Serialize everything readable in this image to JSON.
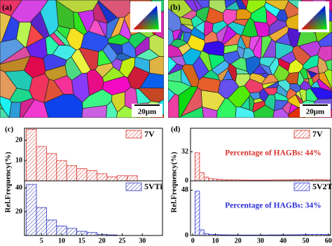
{
  "maps": [
    {
      "label": "(a)",
      "scale_bar": "20μm"
    },
    {
      "label": "(b)",
      "scale_bar": "20μm"
    }
  ],
  "chart_data": [
    {
      "type": "histogram",
      "panel_label": "(c)",
      "ylabel": "Rel.Frequency(%)",
      "bins": [
        1.25,
        3.75,
        6.25,
        8.75,
        11.25,
        13.75,
        16.25,
        18.75,
        21.25,
        23.75,
        26.25,
        28.75
      ],
      "series": [
        {
          "name": "7V",
          "color": "#d9312b",
          "values": [
            25.5,
            17,
            13.5,
            10,
            7.5,
            6,
            5,
            3.5,
            2,
            2.5,
            2.5
          ]
        }
      ],
      "xlim": [
        0.8,
        35
      ],
      "ylim": [
        0,
        26
      ],
      "yticks": [
        10,
        20
      ]
    },
    {
      "type": "histogram",
      "bins": [
        1.25,
        3.75,
        6.25,
        8.75,
        11.25,
        13.75,
        16.25,
        18.75,
        21.25,
        23.75,
        26.25,
        28.75
      ],
      "series": [
        {
          "name": "5VTi",
          "color": "#2b2fb8",
          "values": [
            43,
            23.5,
            13,
            8,
            6,
            3.5,
            2.5,
            1,
            0.5,
            0,
            0
          ]
        }
      ],
      "xlim": [
        0.8,
        35
      ],
      "ylim": [
        0,
        46
      ],
      "yticks": [
        20,
        40
      ],
      "xticks": [
        5,
        10,
        15,
        20,
        25,
        30
      ]
    },
    {
      "type": "histogram",
      "panel_label": "(d)",
      "ylabel": "Rel.Frequency(%)",
      "annotation": "Percentage of HAGBs: 44%",
      "bins": [
        1,
        3,
        5,
        7,
        9,
        11,
        13,
        15,
        17,
        19,
        21,
        23,
        25,
        27,
        29,
        31,
        33,
        35,
        37,
        39,
        41,
        43,
        45,
        47,
        49,
        51,
        53,
        55,
        57,
        59,
        61
      ],
      "series": [
        {
          "name": "7V",
          "color": "#d9312b",
          "values": [
            31,
            9,
            4,
            2.5,
            2,
            1.5,
            1.2,
            1,
            1,
            1,
            0.8,
            0.8,
            0.7,
            0.7,
            0.7,
            0.8,
            0.8,
            0.9,
            1,
            1,
            1,
            1.1,
            1.2,
            1.2,
            1.3,
            1.3,
            1.5,
            1.5,
            1.2,
            1
          ]
        }
      ],
      "xlim": [
        -1,
        61
      ],
      "ylim": [
        0,
        58
      ],
      "yticks": [
        0,
        32
      ]
    },
    {
      "type": "histogram",
      "annotation": "Percentage of HAGBs: 34%",
      "bins": [
        1,
        3,
        5,
        7,
        9,
        11,
        13,
        15,
        17,
        19,
        21,
        23,
        25,
        27,
        29,
        31,
        33,
        35,
        37,
        39,
        41,
        43,
        45,
        47,
        49,
        51,
        53,
        55,
        57,
        59,
        61
      ],
      "series": [
        {
          "name": "5V2Ti",
          "color": "#2b2fd6",
          "values": [
            47,
            6,
            2,
            1.2,
            1,
            0.8,
            0.7,
            0.6,
            0.6,
            0.5,
            0.5,
            0.5,
            0.5,
            0.5,
            0.5,
            0.5,
            0.6,
            0.6,
            0.6,
            0.7,
            0.7,
            0.8,
            0.8,
            0.9,
            1,
            1,
            1.2,
            1.3,
            1,
            0.8
          ]
        }
      ],
      "xlim": [
        -1,
        61
      ],
      "ylim": [
        0,
        58
      ],
      "yticks": [
        0,
        48
      ],
      "xticks": [
        0,
        10,
        20,
        30,
        40,
        50,
        60
      ]
    }
  ]
}
